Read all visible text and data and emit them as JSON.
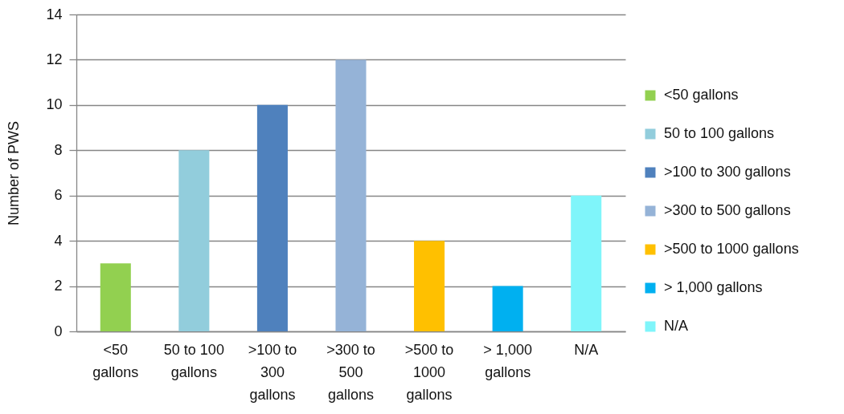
{
  "chart_data": {
    "type": "bar",
    "ylabel": "Number of PWS",
    "stacked": true,
    "categories": [
      "<50 gallons",
      "50 to 100 gallons",
      ">100 to 300 gallons",
      ">300 to 500 gallons",
      ">500 to 1000 gallons",
      "> 1,000 gallons",
      "N/A"
    ],
    "series": [
      {
        "name": "<50 gallons",
        "color": "#92d050",
        "values": [
          3,
          null,
          null,
          null,
          null,
          null,
          null
        ]
      },
      {
        "name": "50 to 100 gallons",
        "color": "#92cddc",
        "values": [
          null,
          8,
          null,
          null,
          null,
          null,
          null
        ]
      },
      {
        "name": ">100 to 300 gallons",
        "color": "#4f81bd",
        "values": [
          null,
          null,
          10,
          null,
          null,
          null,
          null
        ]
      },
      {
        "name": ">300 to 500 gallons",
        "color": "#95b3d7",
        "values": [
          null,
          null,
          null,
          12,
          null,
          null,
          null
        ]
      },
      {
        "name": ">500 to 1000 gallons",
        "color": "#ffc000",
        "values": [
          null,
          null,
          null,
          null,
          4,
          null,
          null
        ]
      },
      {
        "name": "> 1,000 gallons",
        "color": "#00b0f0",
        "values": [
          null,
          null,
          null,
          null,
          null,
          2,
          null
        ]
      },
      {
        "name": "N/A",
        "color": "#7ff5fa",
        "values": [
          null,
          null,
          null,
          null,
          null,
          null,
          6
        ]
      }
    ],
    "ylim": [
      0,
      14
    ],
    "yticks": [
      0,
      2,
      4,
      6,
      8,
      10,
      12,
      14
    ],
    "grid": "y",
    "legend": "right"
  }
}
